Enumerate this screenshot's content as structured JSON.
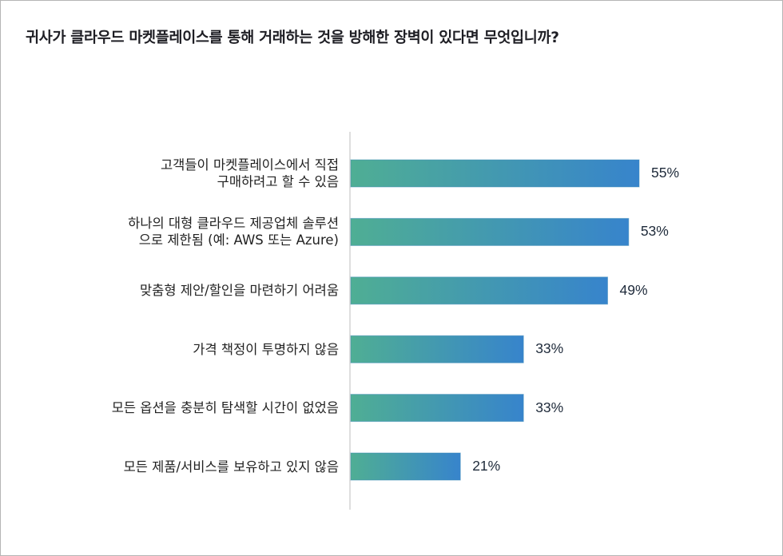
{
  "chart_data": {
    "type": "bar",
    "orientation": "horizontal",
    "title": "귀사가 클라우드 마켓플레이스를 통해 거래하는 것을 방해한 장벽이 있다면 무엇입니까?",
    "categories": [
      "고객들이 마켓플레이스에서 직접\n구매하려고 할 수 있음",
      "하나의 대형 클라우드 제공업체 솔루션\n으로 제한됨 (예: AWS 또는 Azure)",
      "맞춤형 제안/할인을 마련하기 어려움",
      "가격 책정이 투명하지 않음",
      "모든 옵션을 충분히 탐색할 시간이 없었음",
      "모든 제품/서비스를 보유하고 있지 않음"
    ],
    "values": [
      55,
      53,
      49,
      33,
      33,
      21
    ],
    "value_labels": [
      "55%",
      "53%",
      "49%",
      "33%",
      "33%",
      "21%"
    ],
    "xlabel": "",
    "ylabel": "",
    "xlim": [
      0,
      55
    ],
    "grid": false,
    "colors": {
      "gradient_start": "#4fae94",
      "gradient_end": "#3784cc",
      "axis": "#c8c8c8"
    }
  }
}
